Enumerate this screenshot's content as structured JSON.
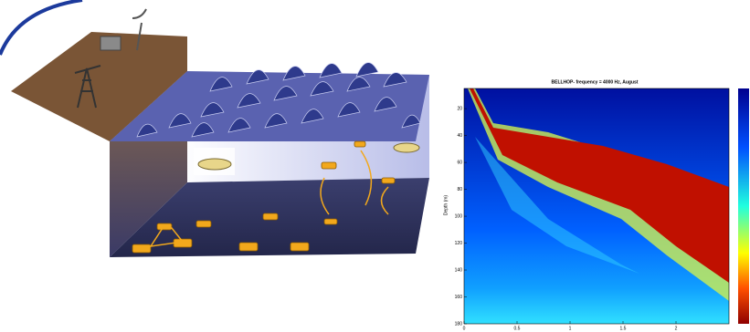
{
  "plot": {
    "title": "BELLHOP- frequency = 4000 Hz, August",
    "ylabel": "Depth (m)",
    "ylim": [
      5,
      180
    ],
    "yticks": [
      20,
      40,
      60,
      80,
      100,
      120,
      140,
      160,
      180
    ],
    "xlim": [
      0,
      2.5
    ],
    "xticks": [
      0,
      0.5,
      1,
      1.5,
      2
    ]
  }
}
